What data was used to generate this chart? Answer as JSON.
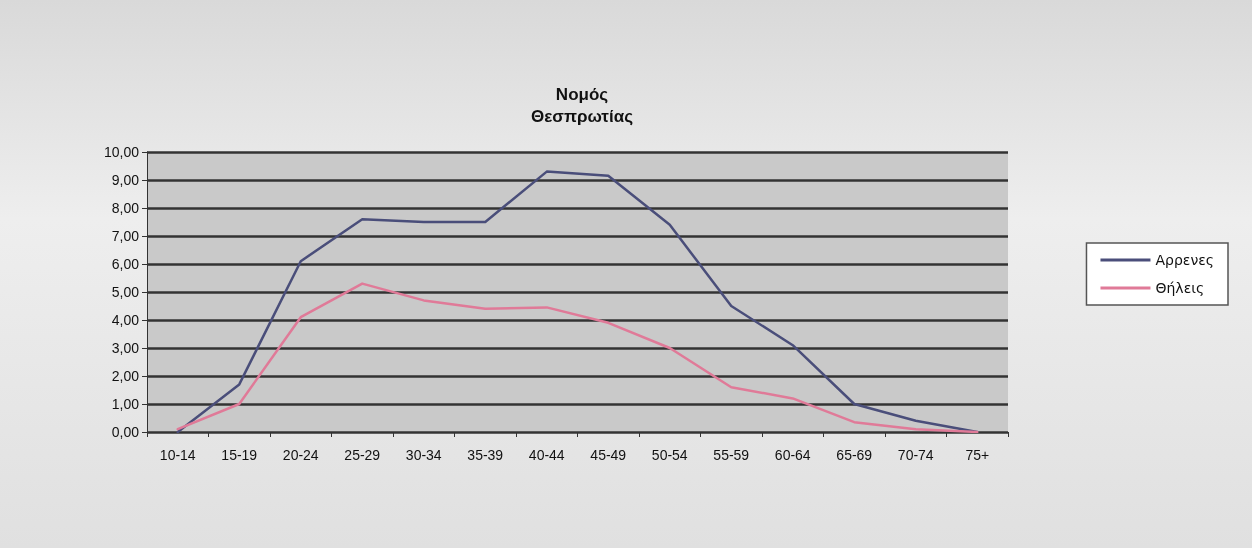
{
  "chart_data": {
    "type": "line",
    "title": "Νομός\nΘεσπρωτίας",
    "categories": [
      "10-14",
      "15-19",
      "20-24",
      "25-29",
      "30-34",
      "35-39",
      "40-44",
      "45-49",
      "50-54",
      "55-59",
      "60-64",
      "65-69",
      "70-74",
      "75+"
    ],
    "series": [
      {
        "name": "Αρρενες",
        "color": "#4a4e7a",
        "values": [
          0,
          1.7,
          6.1,
          7.6,
          7.5,
          7.5,
          9.3,
          9.15,
          7.4,
          4.5,
          3.1,
          1.0,
          0.4,
          0
        ]
      },
      {
        "name": "Θήλεις",
        "color": "#e07a98",
        "values": [
          0.1,
          1.0,
          4.1,
          5.3,
          4.7,
          4.4,
          4.45,
          3.9,
          3.0,
          1.6,
          1.2,
          0.35,
          0.1,
          0
        ]
      }
    ],
    "ylim": [
      0,
      10
    ],
    "yticks": [
      {
        "value": 0,
        "label": "0,00"
      },
      {
        "value": 1,
        "label": "1,00"
      },
      {
        "value": 2,
        "label": "2,00"
      },
      {
        "value": 3,
        "label": "3,00"
      },
      {
        "value": 4,
        "label": "4,00"
      },
      {
        "value": 5,
        "label": "5,00"
      },
      {
        "value": 6,
        "label": "6,00"
      },
      {
        "value": 7,
        "label": "7,00"
      },
      {
        "value": 8,
        "label": "8,00"
      },
      {
        "value": 9,
        "label": "9,00"
      },
      {
        "value": 10,
        "label": "10,00"
      }
    ],
    "grid": "y",
    "legend": "right",
    "marker": "none",
    "line_style": "solid"
  }
}
